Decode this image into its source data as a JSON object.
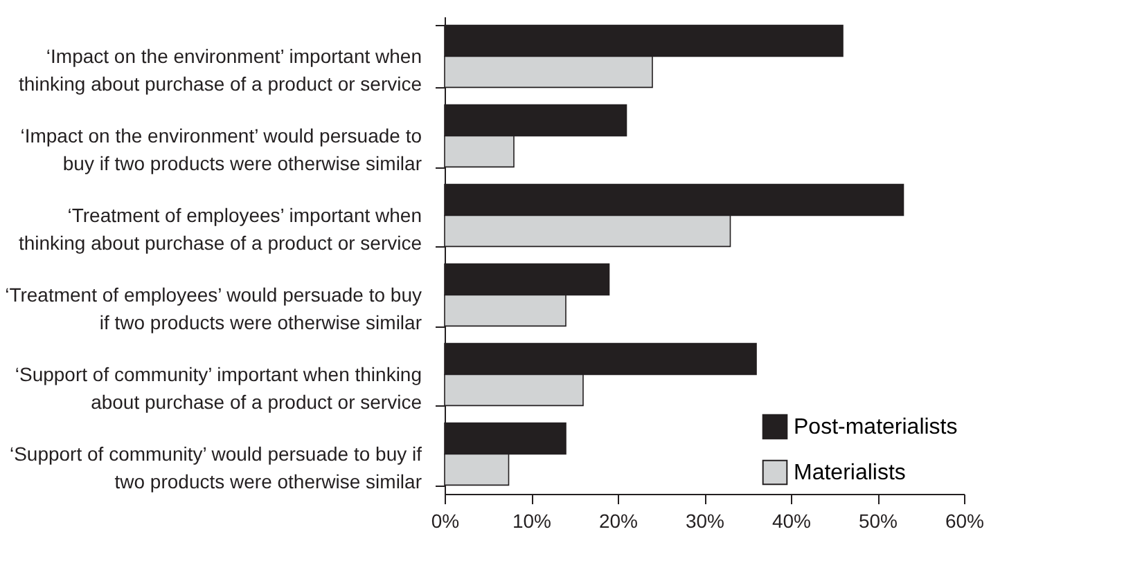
{
  "chart_data": {
    "type": "bar",
    "orientation": "horizontal",
    "categories": [
      "‘Impact on the environment’ important when\nthinking about purchase of a product or service",
      "‘Impact on the environment’ would persuade to\nbuy if two products were otherwise similar",
      "‘Treatment of employees’ important when\nthinking about purchase of a product or service",
      "‘Treatment of employees’ would persuade to buy\nif two products were otherwise similar",
      "‘Support of community’ important when thinking\nabout purchase of a product or service",
      "‘Support of community’ would persuade to buy if\ntwo products were otherwise similar"
    ],
    "series": [
      {
        "name": "Post-materialists",
        "color": "#231f20",
        "values": [
          46,
          21,
          53,
          19,
          36,
          14
        ]
      },
      {
        "name": "Materialists",
        "color": "#d1d3d4",
        "values": [
          24,
          8,
          33,
          14,
          16,
          7.4
        ]
      }
    ],
    "xlim": [
      0,
      60
    ],
    "xticks": [
      {
        "value": 0,
        "label": "0%"
      },
      {
        "value": 10,
        "label": "10%"
      },
      {
        "value": 20,
        "label": "20%"
      },
      {
        "value": 30,
        "label": "30%"
      },
      {
        "value": 40,
        "label": "40%"
      },
      {
        "value": 50,
        "label": "50%"
      },
      {
        "value": 60,
        "label": "60%"
      }
    ],
    "grid": false,
    "legend": "bottom right"
  }
}
